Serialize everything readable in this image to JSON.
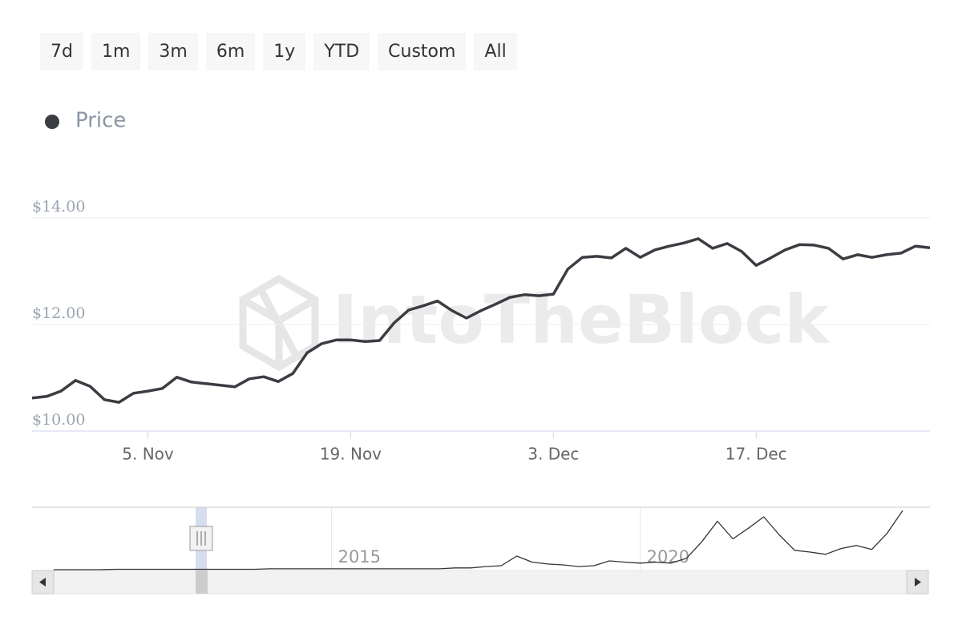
{
  "range_buttons": [
    "7d",
    "1m",
    "3m",
    "6m",
    "1y",
    "YTD",
    "Custom",
    "All"
  ],
  "watermark": "IntoTheBlock",
  "chart_data": [
    {
      "type": "line",
      "categories": [
        null,
        null,
        null,
        null,
        null,
        null,
        null,
        null,
        "5. Nov",
        null,
        null,
        null,
        null,
        null,
        null,
        null,
        null,
        null,
        null,
        null,
        null,
        null,
        "19. Nov",
        null,
        null,
        null,
        null,
        null,
        null,
        null,
        null,
        null,
        null,
        null,
        null,
        null,
        "3. Dec",
        null,
        null,
        null,
        null,
        null,
        null,
        null,
        null,
        null,
        null,
        null,
        null,
        null,
        "17. Dec",
        null,
        null,
        null,
        null,
        null,
        null,
        null,
        null,
        null,
        null,
        null,
        null
      ],
      "series": [
        {
          "name": "Price",
          "color": "#3a3d42",
          "values": [
            10.62,
            10.65,
            10.75,
            10.95,
            10.84,
            10.59,
            10.54,
            10.71,
            10.75,
            10.8,
            11.01,
            10.92,
            10.89,
            10.86,
            10.83,
            10.98,
            11.02,
            10.93,
            11.08,
            11.47,
            11.64,
            11.71,
            11.71,
            11.68,
            11.7,
            12.03,
            12.27,
            12.35,
            12.44,
            12.26,
            12.12,
            12.26,
            12.38,
            12.51,
            12.56,
            12.54,
            12.57,
            13.04,
            13.26,
            13.28,
            13.25,
            13.43,
            13.26,
            13.4,
            13.47,
            13.53,
            13.61,
            13.43,
            13.52,
            13.37,
            13.11,
            13.25,
            13.4,
            13.5,
            13.49,
            13.43,
            13.23,
            13.31,
            13.26,
            13.31,
            13.34,
            13.47,
            13.44
          ]
        }
      ],
      "ylim": [
        10,
        14
      ],
      "yticks": [
        {
          "value": 10,
          "label": "$10.00"
        },
        {
          "value": 12,
          "label": "$12.00"
        },
        {
          "value": 14,
          "label": "$14.00"
        }
      ],
      "grid": true,
      "legend": "top-left"
    },
    {
      "type": "line",
      "categories": [
        null,
        null,
        null,
        null,
        null,
        null,
        null,
        null,
        null,
        null,
        null,
        null,
        null,
        null,
        null,
        null,
        null,
        null,
        "2015",
        null,
        null,
        null,
        null,
        null,
        null,
        null,
        null,
        null,
        null,
        null,
        null,
        null,
        null,
        null,
        null,
        null,
        null,
        null,
        "2020",
        null,
        null,
        null,
        null,
        null,
        null,
        null,
        null,
        null,
        null,
        null,
        null,
        null,
        null,
        null,
        null,
        null
      ],
      "series": [
        {
          "color": "#333333",
          "values": [
            0,
            0,
            0,
            0,
            0.1,
            0.1,
            0.1,
            0.1,
            0.1,
            0.1,
            0.1,
            0.1,
            0.1,
            0.1,
            0.2,
            0.2,
            0.2,
            0.2,
            0.2,
            0.2,
            0.2,
            0.2,
            0.2,
            0.2,
            0.2,
            0.2,
            0.4,
            0.4,
            0.7,
            0.9,
            3.1,
            1.7,
            1.3,
            1.1,
            0.7,
            0.9,
            2.0,
            1.7,
            1.5,
            1.7,
            1.5,
            2.6,
            6.4,
            11.0,
            7.0,
            9.4,
            12.0,
            7.9,
            4.4,
            4.0,
            3.5,
            4.8,
            5.5,
            4.6,
            8.3,
            13.4
          ]
        }
      ],
      "ylim": [
        0,
        14
      ]
    }
  ]
}
